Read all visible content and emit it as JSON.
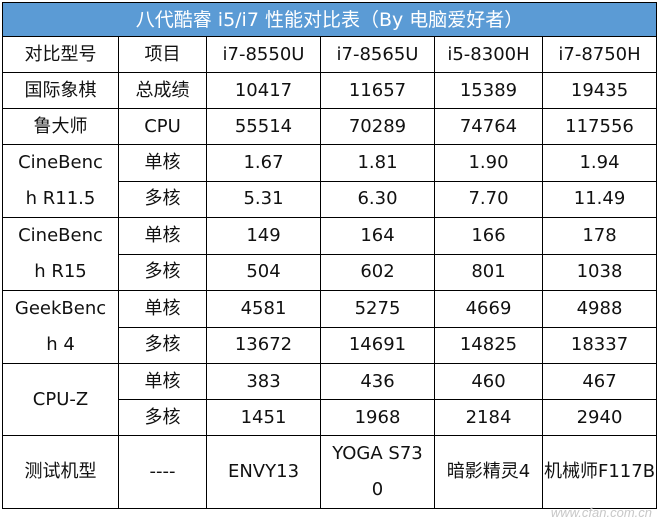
{
  "title": "八代酷睿 i5/i7 性能对比表（By 电脑爱好者）",
  "header": [
    "对比型号",
    "项目",
    "i7-8550U",
    "i7-8565U",
    "i5-8300H",
    "i7-8750H"
  ],
  "rows": {
    "national_chess": {
      "group": "国际象棋",
      "item": "总成绩",
      "values": [
        "10417",
        "11657",
        "15389",
        "19435"
      ]
    },
    "ludashi": {
      "group": "鲁大师",
      "item": "CPU",
      "values": [
        "55514",
        "70289",
        "74764",
        "117556"
      ]
    },
    "cb115": {
      "group": "CineBench R11.5",
      "single": {
        "item": "单核",
        "values": [
          "1.67",
          "1.81",
          "1.90",
          "1.94"
        ]
      },
      "multi": {
        "item": "多核",
        "values": [
          "5.31",
          "6.30",
          "7.70",
          "11.49"
        ]
      }
    },
    "cb15": {
      "group": "CineBench R15",
      "single": {
        "item": "单核",
        "values": [
          "149",
          "164",
          "166",
          "178"
        ]
      },
      "multi": {
        "item": "多核",
        "values": [
          "504",
          "602",
          "801",
          "1038"
        ]
      }
    },
    "gb4": {
      "group": "GeekBench 4",
      "single": {
        "item": "单核",
        "values": [
          "4581",
          "5275",
          "4669",
          "4988"
        ]
      },
      "multi": {
        "item": "多核",
        "values": [
          "13672",
          "14691",
          "14825",
          "18337"
        ]
      }
    },
    "cpuz": {
      "group": "CPU-Z",
      "single": {
        "item": "单核",
        "values": [
          "383",
          "436",
          "460",
          "467"
        ]
      },
      "multi": {
        "item": "多核",
        "values": [
          "1451",
          "1968",
          "2184",
          "2940"
        ]
      }
    },
    "test_machine": {
      "group": "测试机型",
      "item": "----",
      "values": [
        "ENVY13",
        "YOGA S730",
        "暗影精灵4",
        "机械师F117B"
      ]
    }
  },
  "watermark": "www.cfan.com.cn",
  "colors": {
    "title_bg": "#5b9bd5",
    "title_text": "#ffffff",
    "border": "#000000"
  }
}
